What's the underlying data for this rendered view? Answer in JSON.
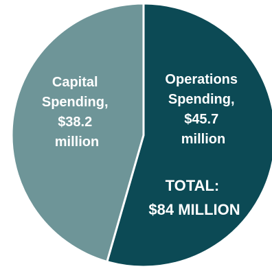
{
  "chart_data": {
    "type": "pie",
    "slices": [
      {
        "label_lines": [
          "Operations",
          "Spending,",
          "$45.7",
          "million"
        ],
        "value": 45.7,
        "color": "#0c4a55"
      },
      {
        "label_lines": [
          "Capital",
          "Spending,",
          "$38.2",
          "million"
        ],
        "value": 38.2,
        "color": "#6e9598"
      }
    ],
    "total_lines": [
      "TOTAL:",
      "$84 MILLION"
    ],
    "start": "12 o'clock",
    "direction": "clockwise",
    "legend": "none",
    "separator_color": "#ffffff"
  }
}
